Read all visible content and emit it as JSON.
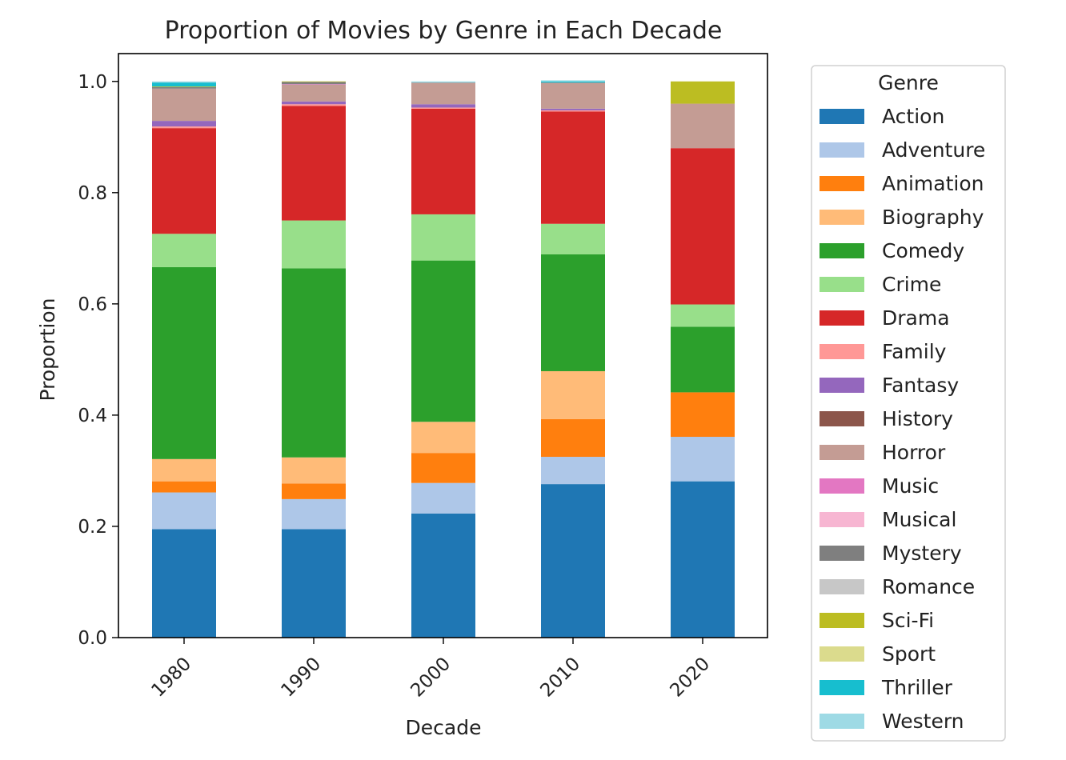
{
  "chart_data": {
    "type": "bar",
    "stacked": true,
    "title": "Proportion of Movies by Genre in Each Decade",
    "xlabel": "Decade",
    "ylabel": "Proportion",
    "ylim": [
      0,
      1.05
    ],
    "yticks": [
      "0.0",
      "0.2",
      "0.4",
      "0.6",
      "0.8",
      "1.0"
    ],
    "categories": [
      "1980",
      "1990",
      "2000",
      "2010",
      "2020"
    ],
    "legend": {
      "title": "Genre",
      "position": "outside-right"
    },
    "grid": false,
    "series": [
      {
        "name": "Action",
        "color": "#1f77b4",
        "values": [
          0.195,
          0.195,
          0.223,
          0.276,
          0.281
        ]
      },
      {
        "name": "Adventure",
        "color": "#aec7e8",
        "values": [
          0.066,
          0.054,
          0.055,
          0.049,
          0.08
        ]
      },
      {
        "name": "Animation",
        "color": "#ff7f0e",
        "values": [
          0.02,
          0.028,
          0.054,
          0.068,
          0.08
        ]
      },
      {
        "name": "Biography",
        "color": "#ffbb78",
        "values": [
          0.04,
          0.047,
          0.056,
          0.086,
          0.0
        ]
      },
      {
        "name": "Comedy",
        "color": "#2ca02c",
        "values": [
          0.345,
          0.34,
          0.29,
          0.21,
          0.118
        ]
      },
      {
        "name": "Crime",
        "color": "#98df8a",
        "values": [
          0.06,
          0.086,
          0.083,
          0.055,
          0.04
        ]
      },
      {
        "name": "Drama",
        "color": "#d62728",
        "values": [
          0.19,
          0.206,
          0.19,
          0.202,
          0.281
        ]
      },
      {
        "name": "Family",
        "color": "#ff9896",
        "values": [
          0.003,
          0.003,
          0.002,
          0.002,
          0.0
        ]
      },
      {
        "name": "Fantasy",
        "color": "#9467bd",
        "values": [
          0.01,
          0.005,
          0.006,
          0.003,
          0.0
        ]
      },
      {
        "name": "History",
        "color": "#8c564b",
        "values": [
          0.0,
          0.0,
          0.0,
          0.0,
          0.0
        ]
      },
      {
        "name": "Horror",
        "color": "#c49c94",
        "values": [
          0.058,
          0.03,
          0.038,
          0.046,
          0.08
        ]
      },
      {
        "name": "Music",
        "color": "#e377c2",
        "values": [
          0.0,
          0.001,
          0.0,
          0.0,
          0.0
        ]
      },
      {
        "name": "Musical",
        "color": "#f7b6d2",
        "values": [
          0.0,
          0.0,
          0.0,
          0.0,
          0.0
        ]
      },
      {
        "name": "Mystery",
        "color": "#7f7f7f",
        "values": [
          0.003,
          0.004,
          0.001,
          0.001,
          0.0
        ]
      },
      {
        "name": "Romance",
        "color": "#c7c7c7",
        "values": [
          0.0,
          0.0,
          0.0,
          0.0,
          0.0
        ]
      },
      {
        "name": "Sci-Fi",
        "color": "#bcbd22",
        "values": [
          0.001,
          0.001,
          0.0,
          0.0,
          0.04
        ]
      },
      {
        "name": "Sport",
        "color": "#dbdb8d",
        "values": [
          0.0,
          0.0,
          0.0,
          0.0,
          0.0
        ]
      },
      {
        "name": "Thriller",
        "color": "#17becf",
        "values": [
          0.007,
          0.0,
          0.0,
          0.002,
          0.0
        ]
      },
      {
        "name": "Western",
        "color": "#9edae5",
        "values": [
          0.002,
          0.0,
          0.002,
          0.002,
          0.0
        ]
      }
    ]
  }
}
